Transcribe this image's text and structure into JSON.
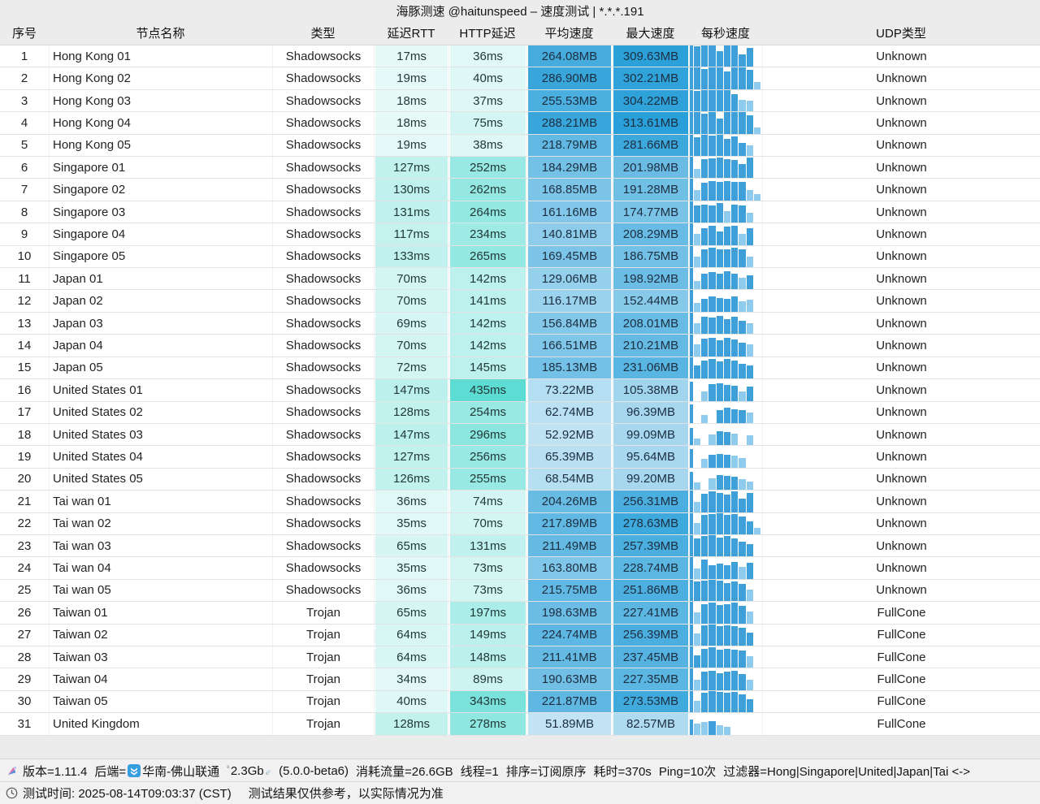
{
  "title": "海豚测速 @haitunspeed – 速度测试 | *.*.*.191",
  "columns": {
    "num": "序号",
    "name": "节点名称",
    "type": "类型",
    "rtt": "延迟RTT",
    "http": "HTTP延迟",
    "avg": "平均速度",
    "max": "最大速度",
    "per_sec": "每秒速度",
    "udp": "UDP类型"
  },
  "colors": {
    "speed_base_rgb": "38,158,216",
    "latency_base_rgb": "61,213,202",
    "bar_medium": "#3f9fd8",
    "bar_light": "#8ecbec",
    "backend_icon_blue": "#379fe0"
  },
  "rows": [
    {
      "num": "1",
      "name": "Hong Kong 01",
      "type": "Shadowsocks",
      "rtt": "17ms",
      "http": "36ms",
      "avg": "264.08MB",
      "max": "309.63MB",
      "udp": "Unknown",
      "bars": [
        1,
        0.95,
        1,
        1,
        0.72,
        1,
        1,
        0.6,
        0.9,
        0
      ]
    },
    {
      "num": "2",
      "name": "Hong Kong 02",
      "type": "Shadowsocks",
      "rtt": "19ms",
      "http": "40ms",
      "avg": "286.90MB",
      "max": "302.21MB",
      "udp": "Unknown",
      "bars": [
        1,
        1,
        0.95,
        1,
        1,
        0.82,
        1,
        1,
        0.9,
        0.35
      ]
    },
    {
      "num": "3",
      "name": "Hong Kong 03",
      "type": "Shadowsocks",
      "rtt": "18ms",
      "http": "37ms",
      "avg": "255.53MB",
      "max": "304.22MB",
      "udp": "Unknown",
      "bars": [
        1,
        0.95,
        1,
        1,
        1,
        1,
        0.8,
        0.55,
        0.5,
        0
      ]
    },
    {
      "num": "4",
      "name": "Hong Kong 04",
      "type": "Shadowsocks",
      "rtt": "18ms",
      "http": "75ms",
      "avg": "288.21MB",
      "max": "313.61MB",
      "udp": "Unknown",
      "bars": [
        1,
        1,
        0.92,
        1,
        0.7,
        1,
        1,
        1,
        0.85,
        0.3
      ]
    },
    {
      "num": "5",
      "name": "Hong Kong 05",
      "type": "Shadowsocks",
      "rtt": "19ms",
      "http": "38ms",
      "avg": "218.79MB",
      "max": "281.66MB",
      "udp": "Unknown",
      "bars": [
        1,
        0.88,
        1,
        0.95,
        1,
        0.78,
        0.92,
        0.6,
        0.5,
        0
      ]
    },
    {
      "num": "6",
      "name": "Singapore 01",
      "type": "Shadowsocks",
      "rtt": "127ms",
      "http": "252ms",
      "avg": "184.29MB",
      "max": "201.98MB",
      "udp": "Unknown",
      "bars": [
        1,
        0.45,
        0.88,
        0.92,
        0.95,
        0.9,
        0.85,
        0.65,
        0.95,
        0
      ]
    },
    {
      "num": "7",
      "name": "Singapore 02",
      "type": "Shadowsocks",
      "rtt": "130ms",
      "http": "262ms",
      "avg": "168.85MB",
      "max": "191.28MB",
      "udp": "Unknown",
      "bars": [
        1,
        0.5,
        0.82,
        0.9,
        0.88,
        0.92,
        0.85,
        0.88,
        0.5,
        0.3
      ]
    },
    {
      "num": "8",
      "name": "Singapore 03",
      "type": "Shadowsocks",
      "rtt": "131ms",
      "http": "264ms",
      "avg": "161.16MB",
      "max": "174.77MB",
      "udp": "Unknown",
      "bars": [
        1,
        0.8,
        0.85,
        0.82,
        0.9,
        0.55,
        0.85,
        0.8,
        0.45,
        0
      ]
    },
    {
      "num": "9",
      "name": "Singapore 04",
      "type": "Shadowsocks",
      "rtt": "117ms",
      "http": "234ms",
      "avg": "140.81MB",
      "max": "208.29MB",
      "udp": "Unknown",
      "bars": [
        1,
        0.5,
        0.78,
        0.9,
        0.62,
        0.85,
        0.9,
        0.5,
        0.8,
        0
      ]
    },
    {
      "num": "10",
      "name": "Singapore 05",
      "type": "Shadowsocks",
      "rtt": "133ms",
      "http": "265ms",
      "avg": "169.45MB",
      "max": "186.75MB",
      "udp": "Unknown",
      "bars": [
        1,
        0.48,
        0.85,
        0.9,
        0.85,
        0.82,
        0.9,
        0.85,
        0.5,
        0
      ]
    },
    {
      "num": "11",
      "name": "Japan 01",
      "type": "Shadowsocks",
      "rtt": "70ms",
      "http": "142ms",
      "avg": "129.06MB",
      "max": "198.92MB",
      "udp": "Unknown",
      "bars": [
        1,
        0.4,
        0.75,
        0.8,
        0.72,
        0.85,
        0.75,
        0.55,
        0.65,
        0
      ]
    },
    {
      "num": "12",
      "name": "Japan 02",
      "type": "Shadowsocks",
      "rtt": "70ms",
      "http": "141ms",
      "avg": "116.17MB",
      "max": "152.44MB",
      "udp": "Unknown",
      "bars": [
        1,
        0.42,
        0.62,
        0.7,
        0.65,
        0.6,
        0.7,
        0.5,
        0.55,
        0
      ]
    },
    {
      "num": "13",
      "name": "Japan 03",
      "type": "Shadowsocks",
      "rtt": "69ms",
      "http": "142ms",
      "avg": "156.84MB",
      "max": "208.01MB",
      "udp": "Unknown",
      "bars": [
        1,
        0.5,
        0.8,
        0.75,
        0.85,
        0.7,
        0.8,
        0.62,
        0.5,
        0
      ]
    },
    {
      "num": "14",
      "name": "Japan 04",
      "type": "Shadowsocks",
      "rtt": "70ms",
      "http": "142ms",
      "avg": "166.51MB",
      "max": "210.21MB",
      "udp": "Unknown",
      "bars": [
        1,
        0.55,
        0.82,
        0.85,
        0.75,
        0.85,
        0.8,
        0.65,
        0.55,
        0
      ]
    },
    {
      "num": "15",
      "name": "Japan 05",
      "type": "Shadowsocks",
      "rtt": "72ms",
      "http": "145ms",
      "avg": "185.13MB",
      "max": "231.06MB",
      "udp": "Unknown",
      "bars": [
        1,
        0.6,
        0.85,
        0.9,
        0.8,
        0.9,
        0.85,
        0.7,
        0.6,
        0
      ]
    },
    {
      "num": "16",
      "name": "United States 01",
      "type": "Shadowsocks",
      "rtt": "147ms",
      "http": "435ms",
      "avg": "73.22MB",
      "max": "105.38MB",
      "udp": "Unknown",
      "bars": [
        0.9,
        0,
        0.45,
        0.78,
        0.82,
        0.75,
        0.7,
        0.42,
        0.65,
        0
      ]
    },
    {
      "num": "17",
      "name": "United States 02",
      "type": "Shadowsocks",
      "rtt": "128ms",
      "http": "254ms",
      "avg": "62.74MB",
      "max": "96.39MB",
      "udp": "Unknown",
      "bars": [
        0.85,
        0,
        0.38,
        0,
        0.62,
        0.72,
        0.65,
        0.6,
        0.5,
        0
      ]
    },
    {
      "num": "18",
      "name": "United States 03",
      "type": "Shadowsocks",
      "rtt": "147ms",
      "http": "296ms",
      "avg": "52.92MB",
      "max": "99.09MB",
      "udp": "Unknown",
      "bars": [
        0.8,
        0.32,
        0,
        0.52,
        0.65,
        0.6,
        0.55,
        0,
        0.45,
        0
      ]
    },
    {
      "num": "19",
      "name": "United States 04",
      "type": "Shadowsocks",
      "rtt": "127ms",
      "http": "256ms",
      "avg": "65.39MB",
      "max": "95.64MB",
      "udp": "Unknown",
      "bars": [
        0.85,
        0,
        0.42,
        0.6,
        0.65,
        0.6,
        0.55,
        0.45,
        0,
        0
      ]
    },
    {
      "num": "20",
      "name": "United States 05",
      "type": "Shadowsocks",
      "rtt": "126ms",
      "http": "255ms",
      "avg": "68.54MB",
      "max": "99.20MB",
      "udp": "Unknown",
      "bars": [
        0.85,
        0.36,
        0,
        0.55,
        0.7,
        0.65,
        0.6,
        0.5,
        0.4,
        0
      ]
    },
    {
      "num": "21",
      "name": "Tai wan 01",
      "type": "Shadowsocks",
      "rtt": "36ms",
      "http": "74ms",
      "avg": "204.26MB",
      "max": "256.31MB",
      "udp": "Unknown",
      "bars": [
        1,
        0.48,
        0.85,
        0.95,
        0.9,
        0.82,
        0.95,
        0.62,
        0.9,
        0
      ]
    },
    {
      "num": "22",
      "name": "Tai wan 02",
      "type": "Shadowsocks",
      "rtt": "35ms",
      "http": "70ms",
      "avg": "217.89MB",
      "max": "278.63MB",
      "udp": "Unknown",
      "bars": [
        1,
        0.52,
        0.9,
        0.95,
        1,
        0.9,
        0.95,
        0.85,
        0.6,
        0.3
      ]
    },
    {
      "num": "23",
      "name": "Tai wan 03",
      "type": "Shadowsocks",
      "rtt": "65ms",
      "http": "131ms",
      "avg": "211.49MB",
      "max": "257.39MB",
      "udp": "Unknown",
      "bars": [
        1,
        0.85,
        0.95,
        1,
        0.9,
        0.95,
        0.85,
        0.7,
        0.6,
        0
      ]
    },
    {
      "num": "24",
      "name": "Tai wan 04",
      "type": "Shadowsocks",
      "rtt": "35ms",
      "http": "73ms",
      "avg": "163.80MB",
      "max": "228.74MB",
      "udp": "Unknown",
      "bars": [
        1,
        0.5,
        0.9,
        0.62,
        0.72,
        0.65,
        0.8,
        0.55,
        0.75,
        0
      ]
    },
    {
      "num": "25",
      "name": "Tai wan 05",
      "type": "Shadowsocks",
      "rtt": "36ms",
      "http": "73ms",
      "avg": "215.75MB",
      "max": "251.86MB",
      "udp": "Unknown",
      "bars": [
        1,
        0.9,
        0.95,
        1,
        0.95,
        0.85,
        0.9,
        0.8,
        0.55,
        0
      ]
    },
    {
      "num": "26",
      "name": "Taiwan 01",
      "type": "Trojan",
      "rtt": "65ms",
      "http": "197ms",
      "avg": "198.63MB",
      "max": "227.41MB",
      "udp": "FullCone",
      "bars": [
        1,
        0.52,
        0.9,
        0.95,
        0.85,
        0.9,
        0.95,
        0.8,
        0.55,
        0
      ]
    },
    {
      "num": "27",
      "name": "Taiwan 02",
      "type": "Trojan",
      "rtt": "64ms",
      "http": "149ms",
      "avg": "224.74MB",
      "max": "256.39MB",
      "udp": "FullCone",
      "bars": [
        1,
        0.55,
        0.95,
        1,
        0.9,
        0.95,
        0.9,
        0.85,
        0.6,
        0
      ]
    },
    {
      "num": "28",
      "name": "Taiwan 03",
      "type": "Trojan",
      "rtt": "64ms",
      "http": "148ms",
      "avg": "211.41MB",
      "max": "237.45MB",
      "udp": "FullCone",
      "bars": [
        1,
        0.6,
        0.9,
        0.95,
        0.85,
        0.9,
        0.85,
        0.8,
        0.55,
        0
      ]
    },
    {
      "num": "29",
      "name": "Taiwan 04",
      "type": "Trojan",
      "rtt": "34ms",
      "http": "89ms",
      "avg": "190.63MB",
      "max": "227.35MB",
      "udp": "FullCone",
      "bars": [
        1,
        0.5,
        0.85,
        0.9,
        0.8,
        0.85,
        0.9,
        0.75,
        0.5,
        0
      ]
    },
    {
      "num": "30",
      "name": "Taiwan 05",
      "type": "Trojan",
      "rtt": "40ms",
      "http": "343ms",
      "avg": "221.87MB",
      "max": "273.53MB",
      "udp": "FullCone",
      "bars": [
        1,
        0.55,
        0.9,
        1,
        0.95,
        0.9,
        0.95,
        0.85,
        0.6,
        0
      ]
    },
    {
      "num": "31",
      "name": "United Kingdom",
      "type": "Trojan",
      "rtt": "128ms",
      "http": "278ms",
      "avg": "51.89MB",
      "max": "82.57MB",
      "udp": "FullCone",
      "bars": [
        0.7,
        0.5,
        0.58,
        0.62,
        0.45,
        0.35,
        0,
        0,
        0,
        0
      ]
    }
  ],
  "footer": {
    "version": "版本=1.11.4",
    "backend_label": "后端=",
    "backend_name": "华南-佛山联通",
    "bandwidth": "2.3Gb",
    "core_version": "(5.0.0-beta6)",
    "traffic": "消耗流量=26.6GB",
    "threads": "线程=1",
    "sort": "排序=订阅原序",
    "duration": "耗时=370s",
    "ping": "Ping=10次",
    "filter": "过滤器=Hong|Singapore|United|Japan|Tai <->",
    "time": "测试时间: 2025-08-14T09:03:37 (CST)",
    "disclaimer": "测试结果仅供参考，以实际情况为准"
  }
}
